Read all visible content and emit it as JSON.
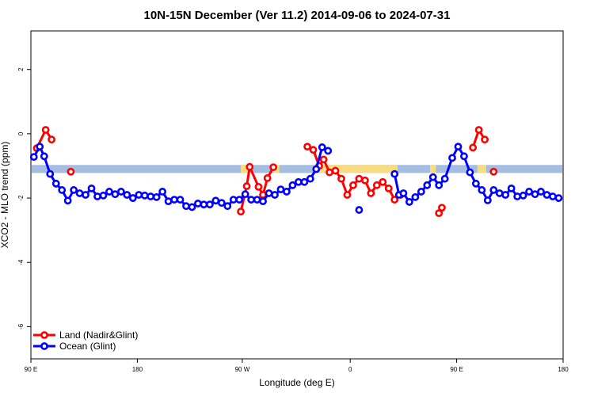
{
  "chart_data": {
    "type": "line",
    "title": "10N-15N December (Ver 11.2)   2014-09-06 to 2024-07-31",
    "xlabel": "Longitude (deg E)",
    "ylabel": "XCO2 - MLO trend (ppm)",
    "xlim": [
      90,
      450
    ],
    "ylim": [
      -7,
      3.2
    ],
    "x_ticks": [
      {
        "value": 90,
        "label": "90 E"
      },
      {
        "value": 162,
        "label": "180"
      },
      {
        "value": 233,
        "label": "90 W"
      },
      {
        "value": 306,
        "label": "0"
      },
      {
        "value": 378,
        "label": "90 E"
      },
      {
        "value": 450,
        "label": "180"
      }
    ],
    "y_ticks": [
      {
        "value": 2,
        "label": "2"
      },
      {
        "value": 0,
        "label": "0"
      },
      {
        "value": -2,
        "label": "-2"
      },
      {
        "value": -4,
        "label": "-4"
      },
      {
        "value": -6,
        "label": "-6"
      }
    ],
    "band": {
      "ymin": -1.22,
      "ymax": -0.97,
      "color": "#a5bde0"
    },
    "band_fill_color": "#f7dc82",
    "legend_position": "bottom-left",
    "series": [
      {
        "name": "Land (Nadir&Glint)",
        "color": "#ff0000",
        "segments": [
          [
            [
              94,
              -0.45
            ],
            [
              100,
              0.12
            ],
            [
              104,
              -0.18
            ]
          ],
          [
            [
              117,
              -1.18
            ]
          ],
          [
            [
              232,
              -2.42
            ],
            [
              236,
              -1.63
            ],
            [
              238,
              -1.03
            ],
            [
              244,
              -1.65
            ],
            [
              247,
              -1.9
            ],
            [
              250,
              -1.38
            ],
            [
              254,
              -1.04
            ]
          ],
          [
            [
              277,
              -0.4
            ],
            [
              281,
              -0.5
            ],
            [
              285,
              -1.0
            ],
            [
              288,
              -0.8
            ],
            [
              292,
              -1.2
            ],
            [
              296,
              -1.15
            ],
            [
              300,
              -1.4
            ],
            [
              304,
              -1.9
            ],
            [
              308,
              -1.6
            ],
            [
              312,
              -1.4
            ],
            [
              316,
              -1.45
            ],
            [
              320,
              -1.85
            ],
            [
              324,
              -1.6
            ],
            [
              328,
              -1.5
            ],
            [
              332,
              -1.7
            ],
            [
              336,
              -2.05
            ],
            [
              340,
              -1.9
            ]
          ],
          [
            [
              366,
              -2.47
            ],
            [
              368,
              -2.3
            ]
          ],
          [
            [
              389,
              -0.43
            ],
            [
              393,
              0.12
            ],
            [
              397,
              -0.18
            ]
          ],
          [
            [
              403,
              -1.18
            ]
          ]
        ]
      },
      {
        "name": "Ocean (Glint)",
        "color": "#0000ff",
        "segments": [
          [
            [
              92,
              -0.72
            ],
            [
              96,
              -0.4
            ],
            [
              99,
              -0.7
            ],
            [
              103,
              -1.25
            ],
            [
              107,
              -1.55
            ],
            [
              111,
              -1.75
            ],
            [
              115,
              -2.08
            ],
            [
              119,
              -1.75
            ],
            [
              123,
              -1.85
            ],
            [
              127,
              -1.9
            ],
            [
              131,
              -1.7
            ],
            [
              135,
              -1.95
            ],
            [
              139,
              -1.92
            ],
            [
              143,
              -1.8
            ],
            [
              147,
              -1.88
            ],
            [
              151,
              -1.8
            ],
            [
              155,
              -1.9
            ],
            [
              159,
              -2.0
            ],
            [
              163,
              -1.9
            ],
            [
              167,
              -1.92
            ],
            [
              171,
              -1.95
            ],
            [
              175,
              -1.97
            ],
            [
              179,
              -1.8
            ],
            [
              183,
              -2.1
            ],
            [
              187,
              -2.05
            ],
            [
              191,
              -2.05
            ],
            [
              195,
              -2.25
            ],
            [
              199,
              -2.28
            ],
            [
              203,
              -2.17
            ],
            [
              207,
              -2.2
            ],
            [
              211,
              -2.2
            ],
            [
              215,
              -2.08
            ],
            [
              219,
              -2.15
            ],
            [
              223,
              -2.25
            ],
            [
              227,
              -2.05
            ],
            [
              231,
              -2.05
            ],
            [
              235,
              -1.88
            ],
            [
              239,
              -2.05
            ],
            [
              243,
              -2.05
            ],
            [
              247,
              -2.1
            ],
            [
              251,
              -1.85
            ],
            [
              255,
              -1.9
            ],
            [
              259,
              -1.73
            ],
            [
              263,
              -1.8
            ],
            [
              267,
              -1.6
            ],
            [
              271,
              -1.5
            ],
            [
              275,
              -1.5
            ],
            [
              279,
              -1.4
            ],
            [
              283,
              -1.1
            ],
            [
              287,
              -0.42
            ],
            [
              291,
              -0.53
            ]
          ],
          [
            [
              312,
              -2.37
            ]
          ],
          [
            [
              336,
              -1.25
            ],
            [
              339,
              -1.9
            ],
            [
              342,
              -1.85
            ],
            [
              346,
              -2.12
            ],
            [
              350,
              -1.97
            ],
            [
              354,
              -1.8
            ],
            [
              358,
              -1.6
            ],
            [
              362,
              -1.35
            ],
            [
              366,
              -1.6
            ],
            [
              370,
              -1.4
            ],
            [
              375,
              -0.75
            ],
            [
              379,
              -0.4
            ],
            [
              383,
              -0.7
            ],
            [
              387,
              -1.2
            ],
            [
              391,
              -1.55
            ],
            [
              395,
              -1.75
            ],
            [
              399,
              -2.07
            ],
            [
              403,
              -1.75
            ],
            [
              407,
              -1.85
            ],
            [
              411,
              -1.9
            ],
            [
              415,
              -1.7
            ],
            [
              419,
              -1.95
            ],
            [
              423,
              -1.92
            ],
            [
              427,
              -1.8
            ],
            [
              431,
              -1.88
            ],
            [
              435,
              -1.8
            ],
            [
              439,
              -1.9
            ],
            [
              443,
              -1.95
            ],
            [
              447,
              -2.0
            ]
          ]
        ]
      }
    ]
  }
}
